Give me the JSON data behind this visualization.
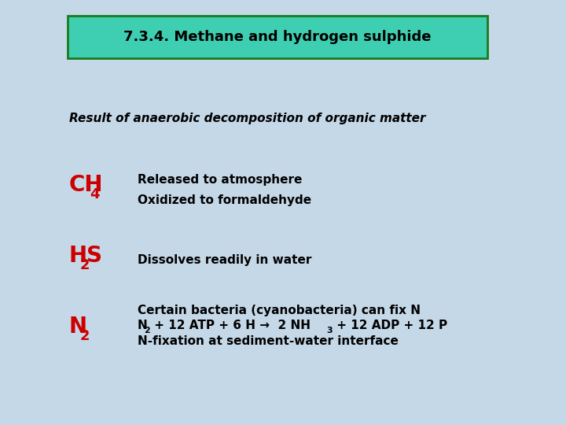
{
  "bg_color": "#c5d8e8",
  "title_box_bg": "#3ecfb2",
  "title_box_edge": "#1a7a1a",
  "title_text": "7.3.4. Methane and hydrogen sulphide",
  "title_color": "#000000",
  "subtitle_text": "Result of anaerobic decomposition of organic matter",
  "subtitle_color": "#000000",
  "ch4_color": "#cc0000",
  "ch4_line1": "Released to atmosphere",
  "ch4_line2": "Oxidized to formaldehyde",
  "h2s_color": "#cc0000",
  "h2s_line1": "Dissolves readily in water",
  "n2_color": "#cc0000",
  "n2_line1": "Certain bacteria (cyanobacteria) can fix N",
  "n2_line3": "N-fixation at sediment-water interface",
  "body_color": "#000000",
  "title_fontsize": 13,
  "subtitle_fontsize": 11,
  "label_fontsize": 20,
  "label_sub_fontsize": 13,
  "body_fontsize": 11
}
